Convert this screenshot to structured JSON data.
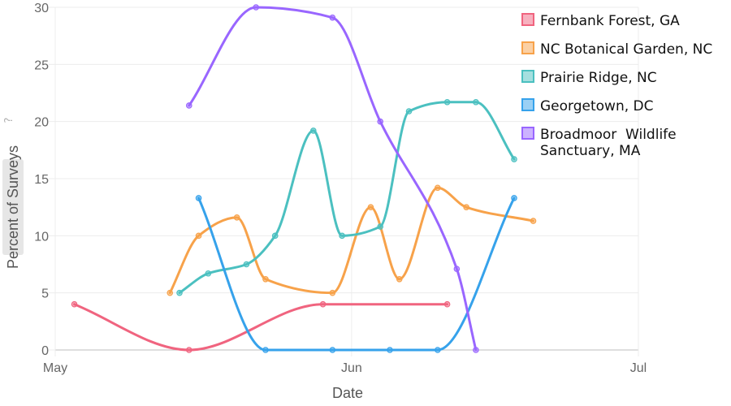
{
  "chart_data": {
    "type": "line",
    "title": "",
    "xlabel": "Date",
    "ylabel": "Percent of Surveys",
    "ylabel_help_icon": "question-mark-icon",
    "x_axis": {
      "type": "date",
      "range": [
        "2018-05-01",
        "2018-07-01"
      ],
      "ticks": [
        {
          "date": "2018-05-01",
          "label": "May"
        },
        {
          "date": "2018-06-01",
          "label": "Jun"
        },
        {
          "date": "2018-07-01",
          "label": "Jul"
        }
      ]
    },
    "y_axis": {
      "range": [
        0,
        30
      ],
      "ticks": [
        0,
        5,
        10,
        15,
        20,
        25,
        30
      ]
    },
    "grid": true,
    "legend_position": "top-right",
    "series": [
      {
        "name": "Fernbank Forest, GA",
        "color": "#f0647f",
        "points": [
          {
            "x": "2018-05-03",
            "y": 4.0
          },
          {
            "x": "2018-05-15",
            "y": 0.0
          },
          {
            "x": "2018-05-29",
            "y": 4.0
          },
          {
            "x": "2018-06-11",
            "y": 4.0
          }
        ]
      },
      {
        "name": "NC Botanical Garden, NC",
        "color": "#f7a24a",
        "points": [
          {
            "x": "2018-05-13",
            "y": 5.0
          },
          {
            "x": "2018-05-16",
            "y": 10.0
          },
          {
            "x": "2018-05-20",
            "y": 11.6
          },
          {
            "x": "2018-05-23",
            "y": 6.2
          },
          {
            "x": "2018-05-30",
            "y": 5.0
          },
          {
            "x": "2018-06-03",
            "y": 12.5
          },
          {
            "x": "2018-06-06",
            "y": 6.2
          },
          {
            "x": "2018-06-10",
            "y": 14.2
          },
          {
            "x": "2018-06-13",
            "y": 12.5
          },
          {
            "x": "2018-06-20",
            "y": 11.3
          }
        ]
      },
      {
        "name": "Prairie Ridge, NC",
        "color": "#4bc0c0",
        "points": [
          {
            "x": "2018-05-14",
            "y": 5.0
          },
          {
            "x": "2018-05-17",
            "y": 6.7
          },
          {
            "x": "2018-05-21",
            "y": 7.5
          },
          {
            "x": "2018-05-24",
            "y": 10.0
          },
          {
            "x": "2018-05-28",
            "y": 19.2
          },
          {
            "x": "2018-05-31",
            "y": 10.0
          },
          {
            "x": "2018-06-04",
            "y": 10.8
          },
          {
            "x": "2018-06-07",
            "y": 20.9
          },
          {
            "x": "2018-06-11",
            "y": 21.7
          },
          {
            "x": "2018-06-14",
            "y": 21.7
          },
          {
            "x": "2018-06-18",
            "y": 16.7
          }
        ]
      },
      {
        "name": "Georgetown, DC",
        "color": "#36a2eb",
        "points": [
          {
            "x": "2018-05-16",
            "y": 13.3
          },
          {
            "x": "2018-05-23",
            "y": 0.0
          },
          {
            "x": "2018-05-30",
            "y": 0.0
          },
          {
            "x": "2018-06-05",
            "y": 0.0
          },
          {
            "x": "2018-06-10",
            "y": 0.0
          },
          {
            "x": "2018-06-18",
            "y": 13.3
          }
        ]
      },
      {
        "name": "Broadmoor  Wildlife Sanctuary, MA",
        "name_lines": [
          "Broadmoor  Wildlife",
          "Sanctuary, MA"
        ],
        "color": "#9966ff",
        "points": [
          {
            "x": "2018-05-15",
            "y": 21.4
          },
          {
            "x": "2018-05-22",
            "y": 30.0
          },
          {
            "x": "2018-05-30",
            "y": 29.1
          },
          {
            "x": "2018-06-04",
            "y": 20.0
          },
          {
            "x": "2018-06-12",
            "y": 7.1
          },
          {
            "x": "2018-06-14",
            "y": 0.0
          }
        ]
      }
    ]
  }
}
